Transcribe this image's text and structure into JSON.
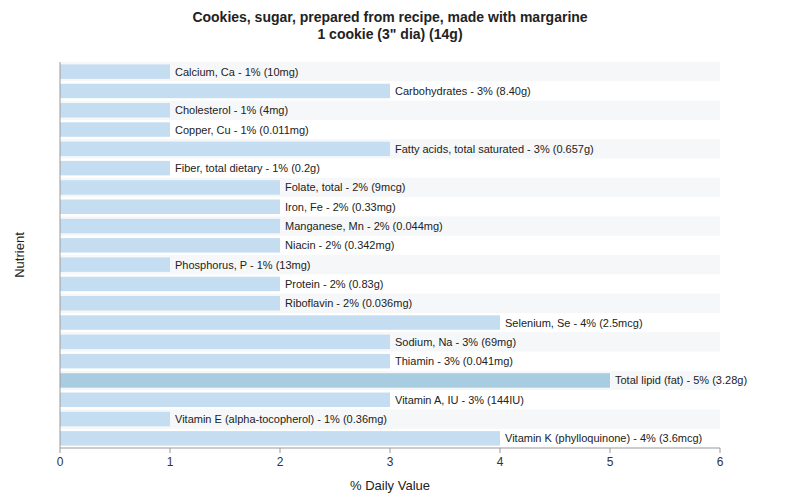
{
  "chart_data": {
    "type": "bar",
    "orientation": "horizontal",
    "title": "Cookies, sugar, prepared from recipe, made with margarine\n1 cookie (3\" dia) (14g)",
    "xlabel": "% Daily Value",
    "ylabel": "Nutrient",
    "categories": [
      "Calcium, Ca - 1% (10mg)",
      "Carbohydrates - 3% (8.40g)",
      "Cholesterol - 1% (4mg)",
      "Copper, Cu - 1% (0.011mg)",
      "Fatty acids, total saturated - 3% (0.657g)",
      "Fiber, total dietary - 1% (0.2g)",
      "Folate, total - 2% (9mcg)",
      "Iron, Fe - 2% (0.33mg)",
      "Manganese, Mn - 2% (0.044mg)",
      "Niacin - 2% (0.342mg)",
      "Phosphorus, P - 1% (13mg)",
      "Protein - 2% (0.83g)",
      "Riboflavin - 2% (0.036mg)",
      "Selenium, Se - 4% (2.5mcg)",
      "Sodium, Na - 3% (69mg)",
      "Thiamin - 3% (0.041mg)",
      "Total lipid (fat) - 5% (3.28g)",
      "Vitamin A, IU - 3% (144IU)",
      "Vitamin E (alpha-tocopherol) - 1% (0.36mg)",
      "Vitamin K (phylloquinone) - 4% (3.6mcg)"
    ],
    "values": [
      1.0,
      3.0,
      1.0,
      1.0,
      3.0,
      1.0,
      2.0,
      2.0,
      2.0,
      2.0,
      1.0,
      2.0,
      2.0,
      4.0,
      3.0,
      3.0,
      5.0,
      3.0,
      1.0,
      4.0
    ],
    "colors": [
      "#c5ddf0",
      "#c5ddf0",
      "#c5ddf0",
      "#c5ddf0",
      "#c5ddf0",
      "#c5ddf0",
      "#c5ddf0",
      "#c5ddf0",
      "#c5ddf0",
      "#c5ddf0",
      "#c5ddf0",
      "#c5ddf0",
      "#c5ddf0",
      "#c5ddf0",
      "#c5ddf0",
      "#c5ddf0",
      "#a8cce0",
      "#c5ddf0",
      "#c5ddf0",
      "#c5ddf0"
    ],
    "xlim": [
      0,
      6
    ],
    "xticks": [
      0,
      1,
      2,
      3,
      4,
      5,
      6
    ],
    "tick_labels": "x"
  }
}
